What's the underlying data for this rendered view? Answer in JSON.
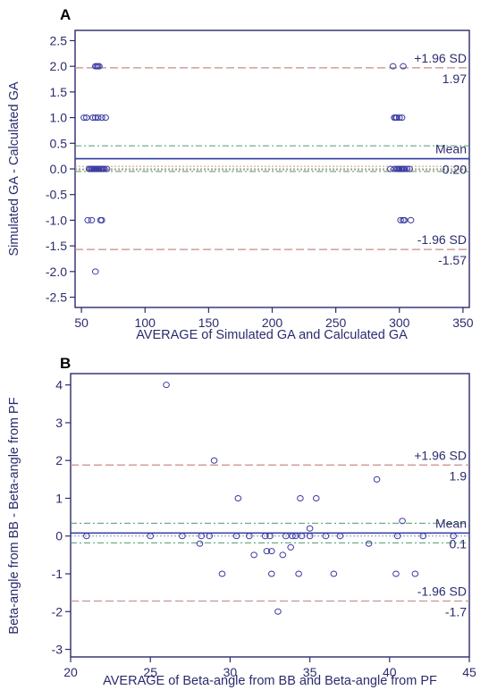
{
  "colors": {
    "axis": "#2b2b6e",
    "mean": "#2f3aa0",
    "sd": "#c98a8a",
    "ci_outer": "#4f9b6b",
    "ci_inner": "#b9a35a",
    "zero": "#8a8ad0",
    "point": "#3a3aa0"
  },
  "chart_data": [
    {
      "type": "scatter",
      "panel_label": "A",
      "title": "",
      "xlabel": "AVERAGE of Simulated GA and Calculated GA",
      "ylabel": "Simulated GA - Calculated GA",
      "xlim": [
        45,
        355
      ],
      "ylim": [
        -2.7,
        2.7
      ],
      "xticks": [
        "50",
        "100",
        "150",
        "200",
        "250",
        "300",
        "350"
      ],
      "yticks": [
        "2.5",
        "2.0",
        "1.5",
        "1.0",
        "0.5",
        "0.0",
        "-0.5",
        "-1.0",
        "-1.5",
        "-2.0",
        "-2.5"
      ],
      "lines": {
        "upper_sd": 1.97,
        "upper_sd_label": "+1.96 SD",
        "upper_sd_value": "1.97",
        "mean": 0.2,
        "mean_label": "Mean",
        "mean_value": "0.20",
        "lower_sd": -1.57,
        "lower_sd_label": "-1.96 SD",
        "lower_sd_value": "-1.57",
        "mean_ci": [
          -0.05,
          0.45
        ],
        "mean_ci_inner": [
          -0.02,
          0.05
        ]
      },
      "points": [
        [
          61,
          2
        ],
        [
          62,
          2
        ],
        [
          63,
          2
        ],
        [
          64,
          2
        ],
        [
          295,
          2
        ],
        [
          303,
          2
        ],
        [
          52,
          1
        ],
        [
          54,
          1
        ],
        [
          59,
          1
        ],
        [
          61,
          1
        ],
        [
          63,
          1
        ],
        [
          66,
          1
        ],
        [
          69,
          1
        ],
        [
          296,
          1
        ],
        [
          297,
          1
        ],
        [
          298,
          1
        ],
        [
          300,
          1
        ],
        [
          302,
          1
        ],
        [
          56,
          0
        ],
        [
          57,
          0
        ],
        [
          58,
          0
        ],
        [
          59,
          0
        ],
        [
          60,
          0
        ],
        [
          61,
          0
        ],
        [
          62,
          0
        ],
        [
          63,
          0
        ],
        [
          64,
          0
        ],
        [
          65,
          0
        ],
        [
          66,
          0
        ],
        [
          67,
          0
        ],
        [
          68,
          0
        ],
        [
          70,
          0
        ],
        [
          293,
          0
        ],
        [
          296,
          0
        ],
        [
          298,
          0
        ],
        [
          299,
          0
        ],
        [
          300,
          0
        ],
        [
          301,
          0
        ],
        [
          302,
          0
        ],
        [
          303,
          0
        ],
        [
          304,
          0
        ],
        [
          306,
          0
        ],
        [
          308,
          0
        ],
        [
          55,
          -1
        ],
        [
          58,
          -1
        ],
        [
          65,
          -1
        ],
        [
          66,
          -1
        ],
        [
          301,
          -1
        ],
        [
          303,
          -1
        ],
        [
          304,
          -1
        ],
        [
          309,
          -1
        ],
        [
          61,
          -2
        ]
      ]
    },
    {
      "type": "scatter",
      "panel_label": "B",
      "title": "",
      "xlabel": "AVERAGE of Beta-angle from BB and Beta-angle from PF",
      "ylabel": "Beta-angle from BB - Beta-angle from PF",
      "xlim": [
        20,
        45
      ],
      "ylim": [
        -3.2,
        4.3
      ],
      "xticks": [
        "20",
        "25",
        "30",
        "35",
        "40",
        "45"
      ],
      "yticks": [
        "4",
        "3",
        "2",
        "1",
        "0",
        "-1",
        "-2",
        "-3"
      ],
      "lines": {
        "upper_sd": 1.88,
        "upper_sd_label": "+1.96 SD",
        "upper_sd_value": "1.9",
        "mean": 0.08,
        "mean_label": "Mean",
        "mean_value": "0.1",
        "lower_sd": -1.72,
        "lower_sd_label": "-1.96 SD",
        "lower_sd_value": "-1.7",
        "mean_ci": [
          -0.18,
          0.34
        ],
        "mean_ci_inner": null
      },
      "points": [
        [
          26,
          4
        ],
        [
          29,
          2
        ],
        [
          30.5,
          1
        ],
        [
          34.4,
          1
        ],
        [
          35.4,
          1
        ],
        [
          39.2,
          1.5
        ],
        [
          40.8,
          0.4
        ],
        [
          35,
          0.2
        ],
        [
          21,
          0
        ],
        [
          25,
          0
        ],
        [
          27,
          0
        ],
        [
          28.2,
          0
        ],
        [
          28.7,
          0
        ],
        [
          30.4,
          0
        ],
        [
          31.2,
          0
        ],
        [
          32.2,
          0
        ],
        [
          32.5,
          0
        ],
        [
          33.5,
          0
        ],
        [
          33.9,
          0
        ],
        [
          34.1,
          0
        ],
        [
          34.5,
          0
        ],
        [
          35,
          0
        ],
        [
          36,
          0
        ],
        [
          36.9,
          0
        ],
        [
          40.5,
          0
        ],
        [
          42.1,
          0
        ],
        [
          44,
          0
        ],
        [
          28.1,
          -0.2
        ],
        [
          38.7,
          -0.2
        ],
        [
          31.5,
          -0.5
        ],
        [
          33.3,
          -0.5
        ],
        [
          32.3,
          -0.4
        ],
        [
          32.6,
          -0.4
        ],
        [
          33.8,
          -0.3
        ],
        [
          29.5,
          -1
        ],
        [
          32.6,
          -1
        ],
        [
          34.3,
          -1
        ],
        [
          36.5,
          -1
        ],
        [
          40.4,
          -1
        ],
        [
          41.6,
          -1
        ],
        [
          33,
          -2
        ]
      ]
    }
  ]
}
